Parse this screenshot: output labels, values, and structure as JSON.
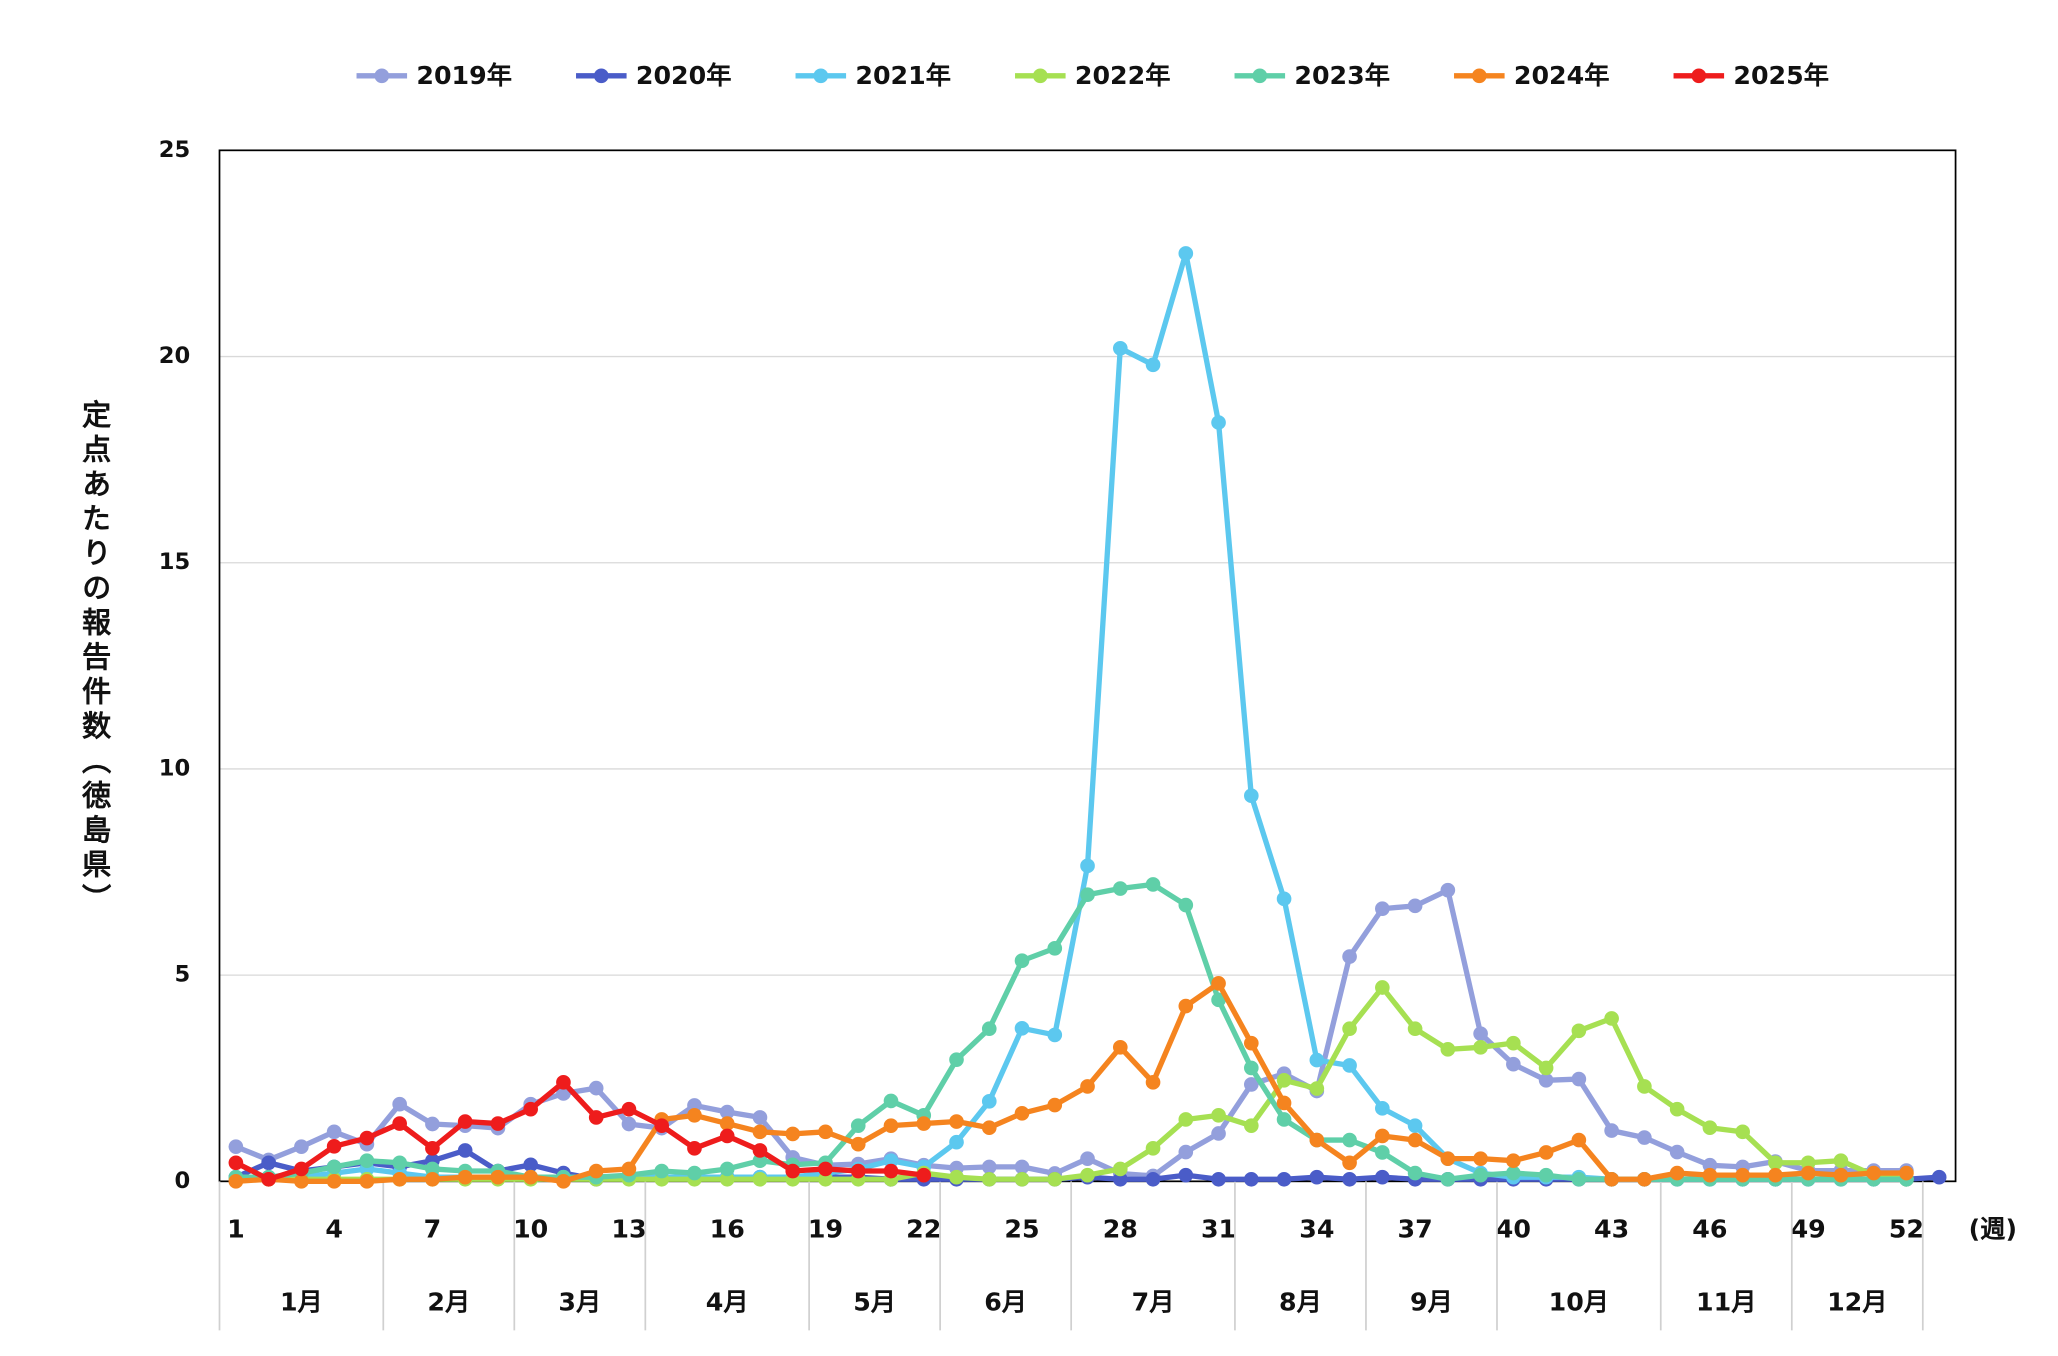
{
  "chart_data": {
    "type": "line",
    "y_label": "定点あたりの報告件数（徳島県）",
    "x_label": "(週)",
    "x": [
      1,
      2,
      3,
      4,
      5,
      6,
      7,
      8,
      9,
      10,
      11,
      12,
      13,
      14,
      15,
      16,
      17,
      18,
      19,
      20,
      21,
      22,
      23,
      24,
      25,
      26,
      27,
      28,
      29,
      30,
      31,
      32,
      33,
      34,
      35,
      36,
      37,
      38,
      39,
      40,
      41,
      42,
      43,
      44,
      45,
      46,
      47,
      48,
      49,
      50,
      51,
      52,
      53
    ],
    "xlim": [
      0.5,
      53.5
    ],
    "xticks": [
      1,
      4,
      7,
      10,
      13,
      16,
      19,
      22,
      25,
      28,
      31,
      34,
      37,
      40,
      43,
      46,
      49,
      52
    ],
    "ylim": [
      0,
      25
    ],
    "yticks": [
      0,
      5,
      10,
      15,
      20,
      25
    ],
    "grid": true,
    "months": [
      {
        "label": "1月",
        "start": 0.5,
        "end": 5.5
      },
      {
        "label": "2月",
        "start": 5.5,
        "end": 9.5
      },
      {
        "label": "3月",
        "start": 9.5,
        "end": 13.5
      },
      {
        "label": "4月",
        "start": 13.5,
        "end": 18.5
      },
      {
        "label": "5月",
        "start": 18.5,
        "end": 22.5
      },
      {
        "label": "6月",
        "start": 22.5,
        "end": 26.5
      },
      {
        "label": "7月",
        "start": 26.5,
        "end": 31.5
      },
      {
        "label": "8月",
        "start": 31.5,
        "end": 35.5
      },
      {
        "label": "9月",
        "start": 35.5,
        "end": 39.5
      },
      {
        "label": "10月",
        "start": 39.5,
        "end": 44.5
      },
      {
        "label": "11月",
        "start": 44.5,
        "end": 48.5
      },
      {
        "label": "12月",
        "start": 48.5,
        "end": 52.5
      }
    ],
    "series": [
      {
        "name": "2019年",
        "color": "#939fdc",
        "values": [
          0.84,
          0.52,
          0.84,
          1.2,
          0.9,
          1.87,
          1.39,
          1.35,
          1.29,
          1.87,
          2.13,
          2.26,
          1.39,
          1.29,
          1.84,
          1.68,
          1.55,
          0.58,
          0.39,
          0.42,
          0.55,
          0.39,
          0.32,
          0.35,
          0.35,
          0.19,
          0.55,
          0.19,
          0.13,
          0.71,
          1.16,
          2.35,
          2.61,
          2.19,
          5.45,
          6.61,
          6.68,
          7.06,
          3.58,
          2.84,
          2.45,
          2.48,
          1.23,
          1.06,
          0.71,
          0.39,
          0.35,
          0.48,
          0.26,
          0.26,
          0.26,
          0.26,
          null
        ]
      },
      {
        "name": "2020年",
        "color": "#4a5cc8",
        "values": [
          0.1,
          0.45,
          0.25,
          0.35,
          0.45,
          0.35,
          0.5,
          0.75,
          0.25,
          0.4,
          0.2,
          0.05,
          0.1,
          0.1,
          0.1,
          0.1,
          0.1,
          0.1,
          0.1,
          0.1,
          0.05,
          0.05,
          0.05,
          0.05,
          0.05,
          0.05,
          0.1,
          0.05,
          0.05,
          0.15,
          0.05,
          0.05,
          0.05,
          0.1,
          0.05,
          0.1,
          0.05,
          0.05,
          0.05,
          0.05,
          0.05,
          0.05,
          0.05,
          0.05,
          0.05,
          0.05,
          0.05,
          0.05,
          0.05,
          0.05,
          0.05,
          0.05,
          0.1
        ]
      },
      {
        "name": "2021年",
        "color": "#5cc8ef",
        "values": [
          0.1,
          0.1,
          0.1,
          0.2,
          0.3,
          0.2,
          0.1,
          0.1,
          0.1,
          0.1,
          0.1,
          0.1,
          0.1,
          0.1,
          0.1,
          0.1,
          0.1,
          0.1,
          0.2,
          0.3,
          0.5,
          0.35,
          0.95,
          1.94,
          3.71,
          3.55,
          7.65,
          20.2,
          19.8,
          22.5,
          18.4,
          9.35,
          6.85,
          2.94,
          2.81,
          1.77,
          1.35,
          0.55,
          0.2,
          0.1,
          0.1,
          0.1,
          0.05,
          0.05,
          0.05,
          0.05,
          0.05,
          0.05,
          0.05,
          0.05,
          0.05,
          0.05,
          null
        ]
      },
      {
        "name": "2022年",
        "color": "#a6e052",
        "values": [
          0.05,
          0.05,
          0.05,
          0.05,
          0.05,
          0.05,
          0.05,
          0.05,
          0.05,
          0.05,
          0.05,
          0.05,
          0.05,
          0.05,
          0.05,
          0.05,
          0.05,
          0.05,
          0.05,
          0.05,
          0.05,
          0.2,
          0.1,
          0.05,
          0.05,
          0.05,
          0.15,
          0.3,
          0.8,
          1.5,
          1.6,
          1.35,
          2.45,
          2.25,
          3.7,
          4.7,
          3.7,
          3.2,
          3.25,
          3.35,
          2.75,
          3.65,
          3.95,
          2.3,
          1.75,
          1.3,
          1.2,
          0.45,
          0.45,
          0.5,
          0.15,
          0.05,
          null
        ]
      },
      {
        "name": "2023年",
        "color": "#5fcfa8",
        "values": [
          0.1,
          0.1,
          0.2,
          0.35,
          0.5,
          0.45,
          0.3,
          0.25,
          0.25,
          0.1,
          0.1,
          0.1,
          0.15,
          0.25,
          0.2,
          0.3,
          0.5,
          0.4,
          0.45,
          1.35,
          1.95,
          1.6,
          2.95,
          3.7,
          5.35,
          5.65,
          6.95,
          7.1,
          7.2,
          6.7,
          4.4,
          2.75,
          1.5,
          1.0,
          1.0,
          0.7,
          0.2,
          0.05,
          0.15,
          0.2,
          0.15,
          0.05,
          0.05,
          0.05,
          0.05,
          0.05,
          0.05,
          0.05,
          0.05,
          0.05,
          0.05,
          0.05,
          null
        ]
      },
      {
        "name": "2024年",
        "color": "#f5841f",
        "values": [
          0,
          0.05,
          0,
          0,
          0,
          0.05,
          0.05,
          0.1,
          0.1,
          0.1,
          0,
          0.25,
          0.3,
          1.5,
          1.6,
          1.4,
          1.2,
          1.15,
          1.2,
          0.9,
          1.35,
          1.4,
          1.45,
          1.3,
          1.65,
          1.85,
          2.3,
          3.25,
          2.4,
          4.25,
          4.8,
          3.35,
          1.9,
          1.0,
          0.45,
          1.1,
          1.0,
          0.55,
          0.55,
          0.5,
          0.7,
          1.0,
          0.05,
          0.05,
          0.2,
          0.15,
          0.15,
          0.15,
          0.2,
          0.15,
          0.2,
          0.2,
          null
        ]
      },
      {
        "name": "2025年",
        "color": "#ee1c1c",
        "values": [
          0.45,
          0.05,
          0.3,
          0.85,
          1.05,
          1.4,
          0.8,
          1.45,
          1.4,
          1.75,
          2.4,
          1.55,
          1.75,
          1.35,
          0.8,
          1.1,
          0.75,
          0.25,
          0.3,
          0.25,
          0.25,
          0.15,
          null,
          null,
          null,
          null,
          null,
          null,
          null,
          null,
          null,
          null,
          null,
          null,
          null,
          null,
          null,
          null,
          null,
          null,
          null,
          null,
          null,
          null,
          null,
          null,
          null,
          null,
          null,
          null,
          null,
          null,
          null
        ]
      }
    ]
  }
}
